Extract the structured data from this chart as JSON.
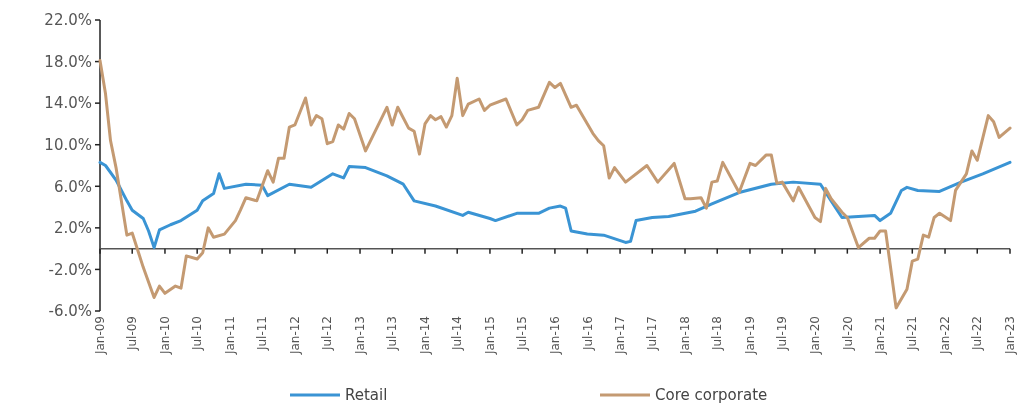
{
  "chart_data": {
    "type": "line",
    "xlim": [
      "2009-01",
      "2023-01"
    ],
    "ylim": [
      -6,
      22
    ],
    "yticks": [
      {
        "value": -6,
        "label": "-6.0%"
      },
      {
        "value": -2,
        "label": "-2.0%"
      },
      {
        "value": 2,
        "label": "2.0%"
      },
      {
        "value": 6,
        "label": "6.0%"
      },
      {
        "value": 10,
        "label": "10.0%"
      },
      {
        "value": 14,
        "label": "14.0%"
      },
      {
        "value": 18,
        "label": "18.0%"
      },
      {
        "value": 22,
        "label": "22.0%"
      }
    ],
    "xticks": [
      {
        "value": "2009-01",
        "label": "Jan-09"
      },
      {
        "value": "2009-07",
        "label": "Jul-09"
      },
      {
        "value": "2010-01",
        "label": "Jan-10"
      },
      {
        "value": "2010-07",
        "label": "Jul-10"
      },
      {
        "value": "2011-01",
        "label": "Jan-11"
      },
      {
        "value": "2011-07",
        "label": "Jul-11"
      },
      {
        "value": "2012-01",
        "label": "Jan-12"
      },
      {
        "value": "2012-07",
        "label": "Jul-12"
      },
      {
        "value": "2013-01",
        "label": "Jan-13"
      },
      {
        "value": "2013-07",
        "label": "Jul-13"
      },
      {
        "value": "2014-01",
        "label": "Jan-14"
      },
      {
        "value": "2014-07",
        "label": "Jul-14"
      },
      {
        "value": "2015-01",
        "label": "Jan-15"
      },
      {
        "value": "2015-07",
        "label": "Jul-15"
      },
      {
        "value": "2016-01",
        "label": "Jan-16"
      },
      {
        "value": "2016-07",
        "label": "Jul-16"
      },
      {
        "value": "2017-01",
        "label": "Jan-17"
      },
      {
        "value": "2017-07",
        "label": "Jul-17"
      },
      {
        "value": "2018-01",
        "label": "Jan-18"
      },
      {
        "value": "2018-07",
        "label": "Jul-18"
      },
      {
        "value": "2019-01",
        "label": "Jan-19"
      },
      {
        "value": "2019-07",
        "label": "Jul-19"
      },
      {
        "value": "2020-01",
        "label": "Jan-20"
      },
      {
        "value": "2020-07",
        "label": "Jul-20"
      },
      {
        "value": "2021-01",
        "label": "Jan-21"
      },
      {
        "value": "2021-07",
        "label": "Jul-21"
      },
      {
        "value": "2022-01",
        "label": "Jan-22"
      },
      {
        "value": "2022-07",
        "label": "Jul-22"
      },
      {
        "value": "2023-01",
        "label": "Jan-23"
      }
    ],
    "grid": false,
    "legend": "bottom",
    "line_style": "solid",
    "series": [
      {
        "name": "Retail",
        "color": "#3a94d4",
        "x": [
          "2009-01",
          "2009-02",
          "2009-04",
          "2009-06",
          "2009-07",
          "2009-09",
          "2009-10",
          "2009-11",
          "2009-12",
          "2010-02",
          "2010-04",
          "2010-07",
          "2010-08",
          "2010-10",
          "2010-11",
          "2010-12",
          "2011-04",
          "2011-07",
          "2011-08",
          "2011-12",
          "2012-04",
          "2012-08",
          "2012-10",
          "2012-11",
          "2013-02",
          "2013-06",
          "2013-09",
          "2013-11",
          "2014-03",
          "2014-08",
          "2014-09",
          "2015-01",
          "2015-02",
          "2015-06",
          "2015-10",
          "2015-12",
          "2016-02",
          "2016-03",
          "2016-04",
          "2016-07",
          "2016-10",
          "2017-02",
          "2017-03",
          "2017-04",
          "2017-07",
          "2017-10",
          "2018-03",
          "2018-06",
          "2018-11",
          "2019-05",
          "2019-09",
          "2020-02",
          "2020-04",
          "2020-06",
          "2020-12",
          "2021-01",
          "2021-03",
          "2021-05",
          "2021-06",
          "2021-08",
          "2021-12",
          "2022-04",
          "2022-08",
          "2023-01"
        ],
        "values": [
          8.3,
          8.0,
          6.6,
          4.6,
          3.7,
          2.9,
          1.7,
          0.1,
          1.8,
          2.3,
          2.7,
          3.7,
          4.6,
          5.3,
          7.2,
          5.8,
          6.2,
          6.1,
          5.1,
          6.2,
          5.9,
          7.2,
          6.8,
          7.9,
          7.8,
          7.0,
          6.2,
          4.6,
          4.1,
          3.2,
          3.5,
          2.9,
          2.7,
          3.4,
          3.4,
          3.9,
          4.1,
          3.9,
          1.7,
          1.4,
          1.3,
          0.6,
          0.7,
          2.7,
          3.0,
          3.1,
          3.6,
          4.3,
          5.4,
          6.2,
          6.4,
          6.2,
          4.6,
          3.0,
          3.2,
          2.7,
          3.4,
          5.6,
          5.9,
          5.6,
          5.5,
          6.4,
          7.2,
          8.3
        ]
      },
      {
        "name": "Core corporate",
        "color": "#c49a72",
        "x": [
          "2009-01",
          "2009-02",
          "2009-03",
          "2009-04",
          "2009-06",
          "2009-07",
          "2009-09",
          "2009-11",
          "2009-12",
          "2010-01",
          "2010-03",
          "2010-04",
          "2010-05",
          "2010-07",
          "2010-08",
          "2010-09",
          "2010-10",
          "2010-12",
          "2011-02",
          "2011-03",
          "2011-04",
          "2011-06",
          "2011-08",
          "2011-09",
          "2011-10",
          "2011-11",
          "2011-12",
          "2012-01",
          "2012-03",
          "2012-04",
          "2012-05",
          "2012-06",
          "2012-07",
          "2012-08",
          "2012-09",
          "2012-10",
          "2012-11",
          "2012-12",
          "2013-02",
          "2013-06",
          "2013-07",
          "2013-08",
          "2013-10",
          "2013-11",
          "2013-12",
          "2014-01",
          "2014-02",
          "2014-03",
          "2014-04",
          "2014-05",
          "2014-06",
          "2014-07",
          "2014-08",
          "2014-09",
          "2014-11",
          "2014-12",
          "2015-01",
          "2015-04",
          "2015-06",
          "2015-07",
          "2015-08",
          "2015-10",
          "2015-12",
          "2016-01",
          "2016-02",
          "2016-04",
          "2016-05",
          "2016-08",
          "2016-09",
          "2016-10",
          "2016-11",
          "2016-12",
          "2017-02",
          "2017-06",
          "2017-08",
          "2017-11",
          "2018-01",
          "2018-02",
          "2018-04",
          "2018-05",
          "2018-06",
          "2018-07",
          "2018-08",
          "2018-11",
          "2019-01",
          "2019-02",
          "2019-04",
          "2019-05",
          "2019-06",
          "2019-07",
          "2019-09",
          "2019-10",
          "2020-01",
          "2020-02",
          "2020-03",
          "2020-04",
          "2020-06",
          "2020-07",
          "2020-09",
          "2020-11",
          "2020-12",
          "2021-01",
          "2021-02",
          "2021-04",
          "2021-06",
          "2021-07",
          "2021-08",
          "2021-09",
          "2021-10",
          "2021-11",
          "2021-12",
          "2022-02",
          "2022-03",
          "2022-05",
          "2022-06",
          "2022-07",
          "2022-09",
          "2022-10",
          "2022-11",
          "2023-01"
        ],
        "values": [
          18.1,
          14.9,
          10.4,
          7.8,
          1.3,
          1.5,
          -1.8,
          -4.7,
          -3.6,
          -4.3,
          -3.6,
          -3.8,
          -0.7,
          -1.0,
          -0.4,
          2.0,
          1.1,
          1.4,
          2.7,
          3.7,
          4.9,
          4.6,
          7.5,
          6.4,
          8.7,
          8.7,
          11.7,
          11.9,
          14.5,
          11.9,
          12.8,
          12.5,
          10.1,
          10.3,
          11.9,
          11.5,
          13.0,
          12.5,
          9.4,
          13.6,
          11.9,
          13.6,
          11.6,
          11.3,
          9.1,
          12.0,
          12.8,
          12.4,
          12.7,
          11.7,
          12.8,
          16.4,
          12.8,
          13.9,
          14.4,
          13.3,
          13.8,
          14.4,
          11.9,
          12.4,
          13.3,
          13.6,
          16.0,
          15.5,
          15.9,
          13.6,
          13.8,
          11.1,
          10.4,
          9.9,
          6.8,
          7.8,
          6.4,
          8.0,
          6.4,
          8.2,
          4.8,
          4.8,
          4.9,
          3.9,
          6.4,
          6.5,
          8.3,
          5.4,
          8.2,
          8.0,
          9.0,
          9.0,
          6.3,
          6.4,
          4.6,
          5.9,
          3.0,
          2.6,
          5.8,
          4.8,
          3.5,
          3.0,
          0.1,
          1.0,
          1.0,
          1.7,
          1.7,
          -5.7,
          -3.9,
          -1.2,
          -1.0,
          1.3,
          1.1,
          3.0,
          3.4,
          2.7,
          5.6,
          7.2,
          9.4,
          8.5,
          12.8,
          12.2,
          10.7,
          11.6
        ]
      }
    ]
  }
}
